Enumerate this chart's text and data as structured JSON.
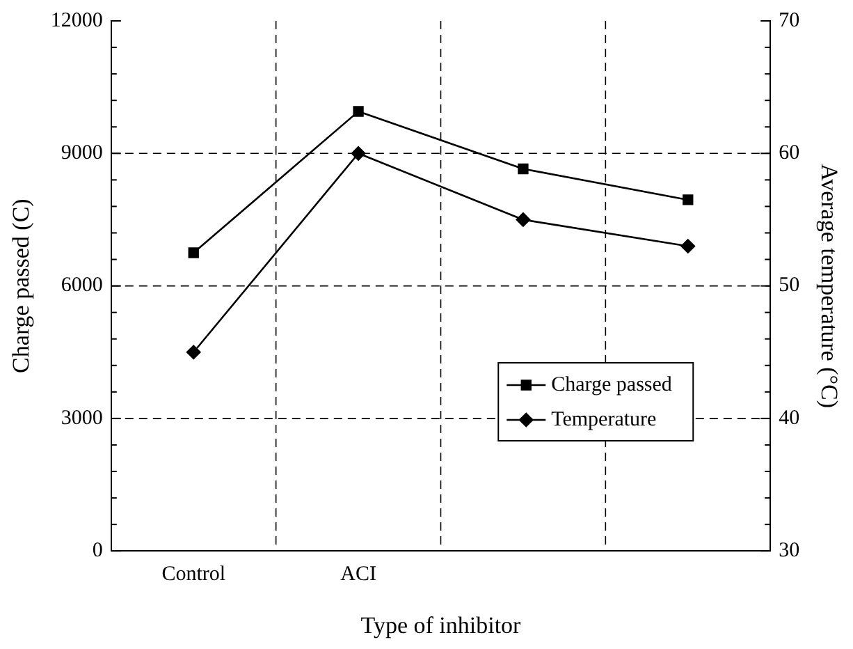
{
  "chart_data": {
    "type": "line",
    "xlabel": "Type of inhibitor",
    "ylabel": "Charge passed (C)",
    "y2label": "Average temperature (°C)",
    "categories": [
      "Control",
      "ACI",
      null,
      null
    ],
    "series": [
      {
        "name": "Charge passed",
        "color": "#000000",
        "marker": "square",
        "values": [
          6750,
          9950,
          8650,
          7950
        ]
      },
      {
        "name": "Temperature",
        "color": "#000000",
        "marker": "diamond",
        "axis": "y2",
        "values": [
          45,
          60,
          55,
          53
        ]
      }
    ],
    "ylim": [
      0,
      12000
    ],
    "yticks": [
      0,
      3000,
      6000,
      9000,
      12000
    ],
    "y2lim": [
      30,
      70
    ],
    "y2ticks": [
      30,
      40,
      50,
      60,
      70
    ],
    "grid": true,
    "legend": "bottom right",
    "line_style": "solid"
  }
}
